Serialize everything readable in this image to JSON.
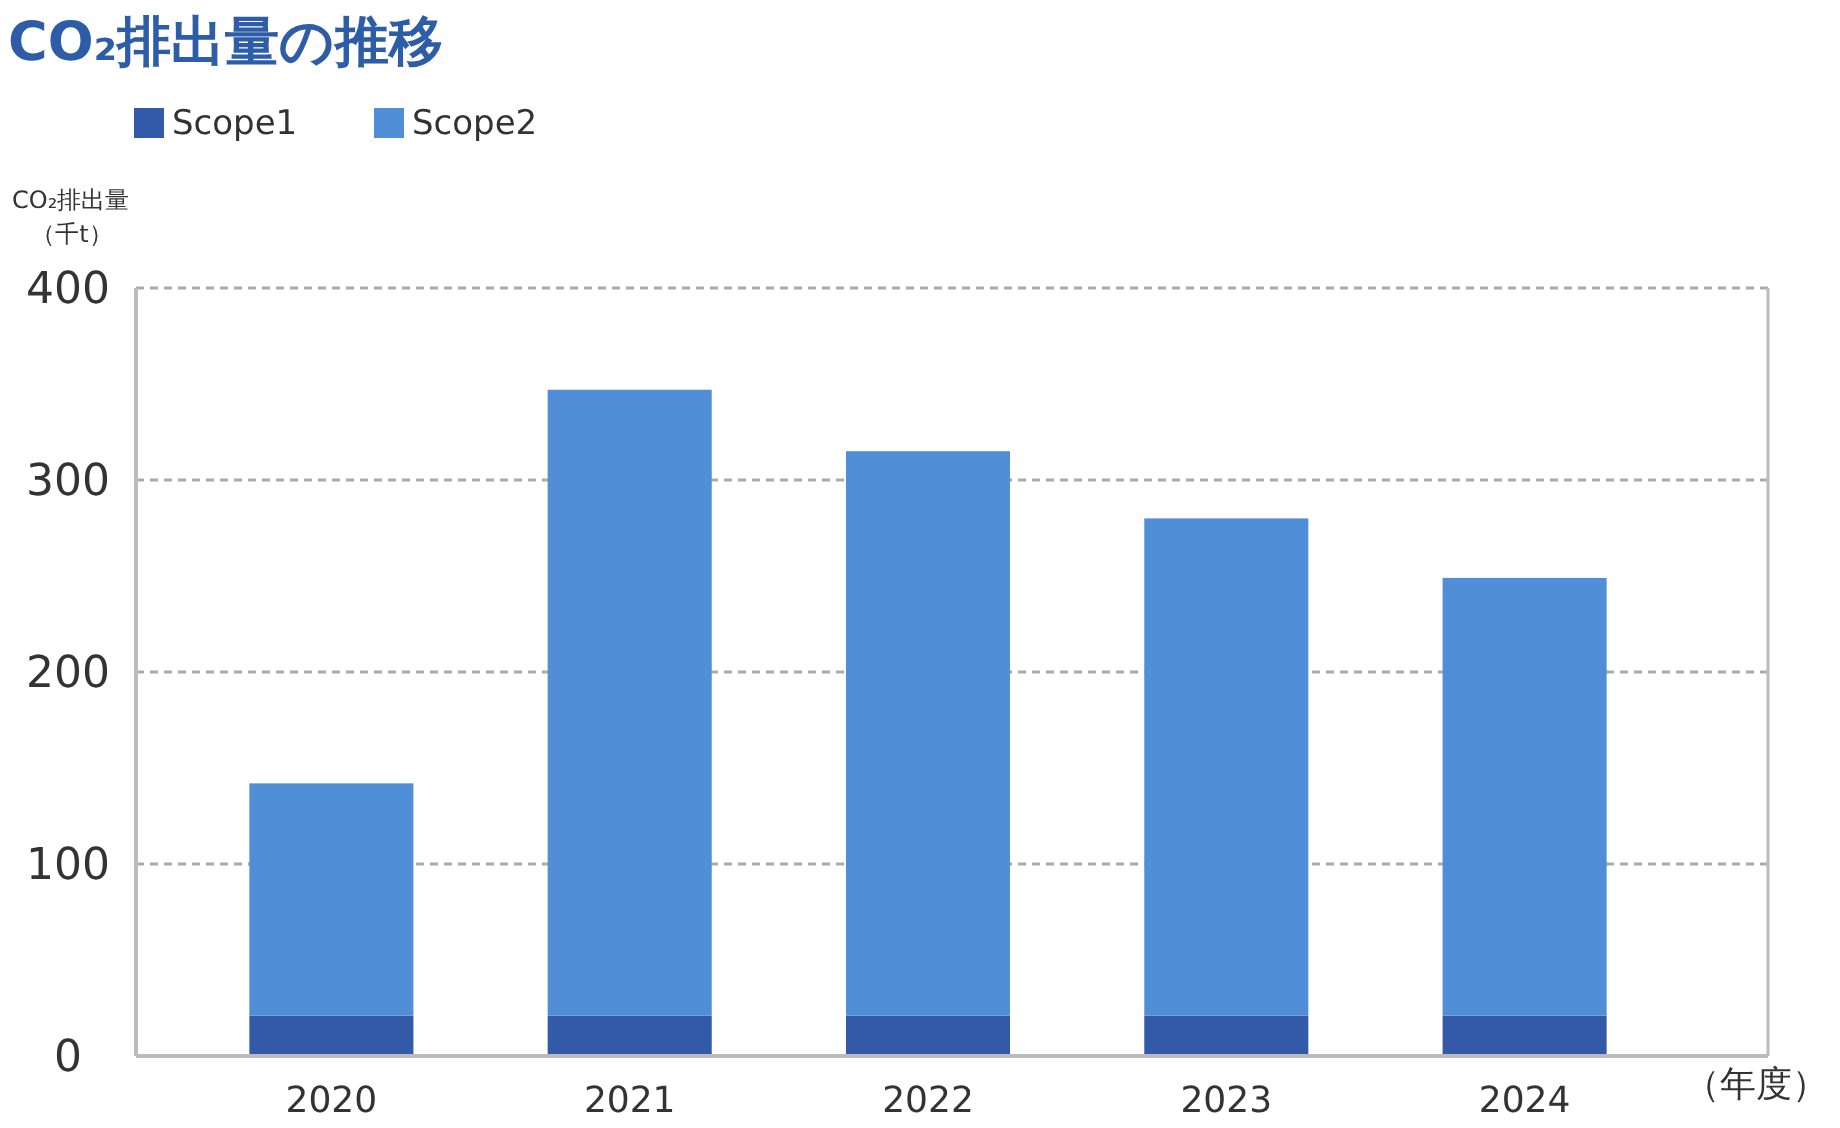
{
  "chart_data": {
    "type": "bar",
    "title": "CO₂排出量の推移",
    "ylabel": "CO₂排出量（千t）",
    "xlabel": "（年度）",
    "categories": [
      "2020",
      "2021",
      "2022",
      "2023",
      "2024"
    ],
    "stacked": true,
    "series": [
      {
        "name": "Scope1",
        "color": "#335aa8",
        "values": [
          21,
          21,
          21,
          21,
          21
        ]
      },
      {
        "name": "Scope2",
        "color": "#508fd8",
        "values": [
          121,
          326,
          294,
          259,
          228
        ]
      }
    ],
    "ylim": [
      0,
      400
    ],
    "yticks": [
      0,
      100,
      200,
      300,
      400
    ],
    "grid": "y",
    "legend": "top left"
  }
}
